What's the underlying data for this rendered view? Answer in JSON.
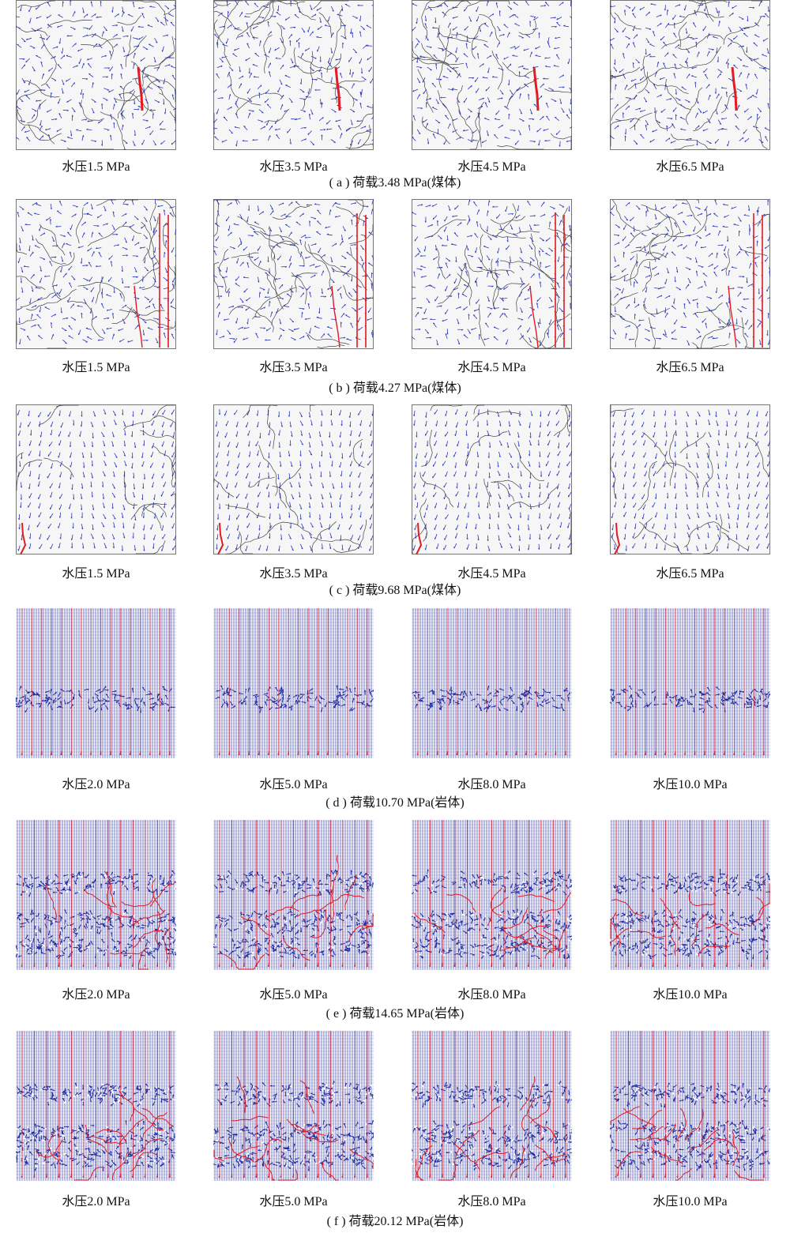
{
  "figure": {
    "groups": [
      {
        "id": "a",
        "caption": "( a ) 荷载3.48 MPa(煤体)",
        "material": "coal",
        "style": "sparse-curved",
        "panels": [
          {
            "label": "水压1.5 MPa"
          },
          {
            "label": "水压3.5 MPa"
          },
          {
            "label": "水压4.5 MPa"
          },
          {
            "label": "水压6.5 MPa"
          }
        ]
      },
      {
        "id": "b",
        "caption": "( b ) 荷载4.27 MPa(煤体)",
        "material": "coal",
        "style": "sparse-right-channels",
        "panels": [
          {
            "label": "水压1.5 MPa"
          },
          {
            "label": "水压3.5 MPa"
          },
          {
            "label": "水压4.5 MPa"
          },
          {
            "label": "水压6.5 MPa"
          }
        ]
      },
      {
        "id": "c",
        "caption": "( c ) 荷载9.68 MPa(煤体)",
        "material": "coal",
        "style": "sparse-vertical",
        "panels": [
          {
            "label": "水压1.5 MPa"
          },
          {
            "label": "水压3.5 MPa"
          },
          {
            "label": "水压4.5 MPa"
          },
          {
            "label": "水压6.5 MPa"
          }
        ]
      },
      {
        "id": "d",
        "caption": "( d ) 荷载10.70 MPa(岩体)",
        "material": "rock",
        "style": "dense-grid",
        "panels": [
          {
            "label": "水压2.0 MPa"
          },
          {
            "label": "水压5.0 MPa"
          },
          {
            "label": "水压8.0 MPa"
          },
          {
            "label": "水压10.0 MPa"
          }
        ]
      },
      {
        "id": "e",
        "caption": "( e ) 荷载14.65 MPa(岩体)",
        "material": "rock",
        "style": "dense-fractured",
        "panels": [
          {
            "label": "水压2.0 MPa"
          },
          {
            "label": "水压5.0 MPa"
          },
          {
            "label": "水压8.0 MPa"
          },
          {
            "label": "水压10.0 MPa"
          }
        ]
      },
      {
        "id": "f",
        "caption": "( f ) 荷载20.12 MPa(岩体)",
        "material": "rock",
        "style": "dense-heavily-fractured",
        "panels": [
          {
            "label": "水压2.0 MPa"
          },
          {
            "label": "水压5.0 MPa"
          },
          {
            "label": "水压8.0 MPa"
          },
          {
            "label": "水压10.0 MPa"
          }
        ]
      }
    ],
    "colors": {
      "flow_vector": "#2b36b8",
      "fracture": "#444444",
      "seepage_channel": "#e01b24",
      "background": "#f6f6f6"
    }
  }
}
